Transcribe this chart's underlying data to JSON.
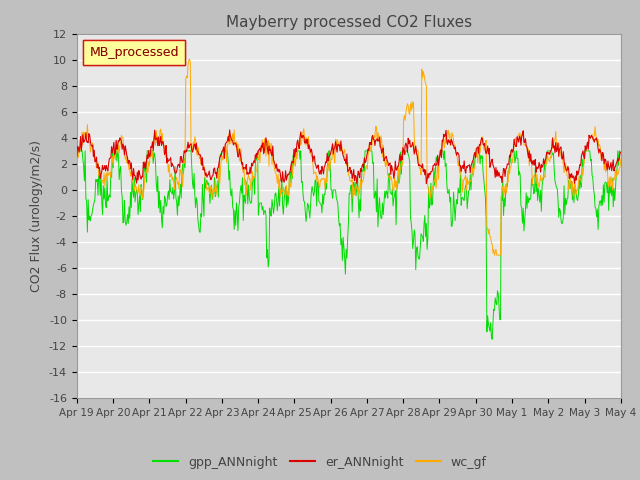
{
  "title": "Mayberry processed CO2 Fluxes",
  "ylabel": "CO2 Flux (urology/m2/s)",
  "ylim": [
    -16,
    12
  ],
  "yticks": [
    -16,
    -14,
    -12,
    -10,
    -8,
    -6,
    -4,
    -2,
    0,
    2,
    4,
    6,
    8,
    10,
    12
  ],
  "fig_bg_color": "#c8c8c8",
  "plot_bg": "#e8e8e8",
  "line_colors": {
    "gpp": "#00dd00",
    "er": "#dd0000",
    "wc": "#ffaa00"
  },
  "legend_label": "MB_processed",
  "legend_text_color": "#880000",
  "legend_box_color": "#ffff99",
  "series_labels": [
    "gpp_ANNnight",
    "er_ANNnight",
    "wc_gf"
  ],
  "n_points": 720,
  "xtick_labels": [
    "Apr 19",
    "Apr 20",
    "Apr 21",
    "Apr 22",
    "Apr 23",
    "Apr 24",
    "Apr 25",
    "Apr 26",
    "Apr 27",
    "Apr 28",
    "Apr 29",
    "Apr 30",
    "May 1",
    "May 2",
    "May 3",
    "May 4"
  ]
}
